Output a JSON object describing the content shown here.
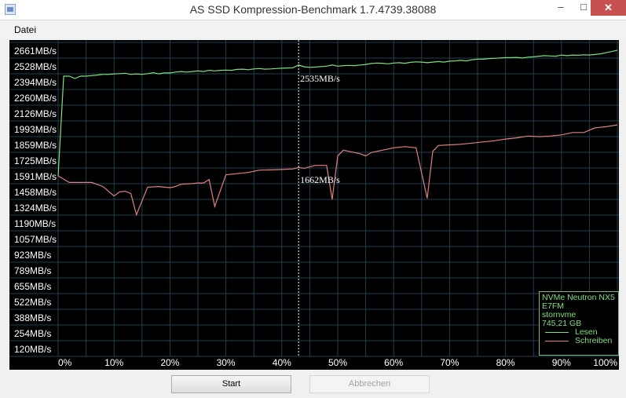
{
  "window": {
    "title": "AS SSD Kompression-Benchmark 1.7.4739.38088",
    "minimize_glyph": "–",
    "maximize_glyph": "□",
    "close_glyph": "✕"
  },
  "menu": {
    "items": [
      {
        "label": "Datei"
      }
    ]
  },
  "chart_data": {
    "type": "line",
    "y_ticks": [
      "2661MB/s",
      "2528MB/s",
      "2394MB/s",
      "2260MB/s",
      "2126MB/s",
      "1993MB/s",
      "1859MB/s",
      "1725MB/s",
      "1591MB/s",
      "1458MB/s",
      "1324MB/s",
      "1190MB/s",
      "1057MB/s",
      "923MB/s",
      "789MB/s",
      "655MB/s",
      "522MB/s",
      "388MB/s",
      "254MB/s",
      "120MB/s"
    ],
    "x_ticks": [
      "0%",
      "10%",
      "20%",
      "30%",
      "40%",
      "50%",
      "60%",
      "70%",
      "80%",
      "90%",
      "100%"
    ],
    "x_unit": "% compressibility",
    "y_unit": "MB/s",
    "ylim": [
      120,
      2661
    ],
    "xlim": [
      0,
      100
    ],
    "grid": true,
    "cursor": {
      "x": 43,
      "read_label": "2535MB/s",
      "write_label": "1662MB/s"
    },
    "series": [
      {
        "name": "Lesen",
        "color": "#7fe07f",
        "x": [
          0,
          1,
          2,
          3,
          4,
          5,
          6,
          7,
          8,
          9,
          10,
          11,
          12,
          13,
          14,
          15,
          16,
          17,
          18,
          19,
          20,
          21,
          22,
          23,
          24,
          25,
          26,
          27,
          28,
          29,
          30,
          31,
          32,
          33,
          34,
          35,
          36,
          37,
          38,
          39,
          40,
          41,
          42,
          43,
          44,
          45,
          46,
          47,
          48,
          49,
          50,
          51,
          52,
          53,
          54,
          55,
          56,
          57,
          58,
          59,
          60,
          61,
          62,
          63,
          64,
          65,
          66,
          67,
          68,
          69,
          70,
          71,
          72,
          73,
          74,
          75,
          76,
          77,
          78,
          79,
          80,
          81,
          82,
          83,
          84,
          85,
          86,
          87,
          88,
          89,
          90,
          91,
          92,
          93,
          94,
          95,
          96,
          97,
          98,
          99,
          100
        ],
        "y": [
          1591,
          2440,
          2440,
          2420,
          2440,
          2440,
          2445,
          2450,
          2455,
          2455,
          2460,
          2462,
          2465,
          2455,
          2460,
          2455,
          2462,
          2470,
          2460,
          2468,
          2468,
          2475,
          2480,
          2475,
          2480,
          2485,
          2480,
          2490,
          2485,
          2490,
          2492,
          2490,
          2498,
          2500,
          2495,
          2502,
          2505,
          2500,
          2502,
          2505,
          2508,
          2510,
          2512,
          2535,
          2520,
          2515,
          2518,
          2522,
          2525,
          2535,
          2525,
          2530,
          2532,
          2530,
          2535,
          2540,
          2548,
          2552,
          2550,
          2545,
          2552,
          2555,
          2550,
          2558,
          2562,
          2560,
          2555,
          2560,
          2565,
          2560,
          2568,
          2570,
          2575,
          2570,
          2580,
          2585,
          2585,
          2590,
          2592,
          2595,
          2598,
          2598,
          2600,
          2595,
          2602,
          2605,
          2610,
          2615,
          2612,
          2610,
          2620,
          2615,
          2620,
          2618,
          2622,
          2620,
          2625,
          2630,
          2640,
          2650,
          2661
        ]
      },
      {
        "name": "Schreiben",
        "color": "#e08080",
        "x": [
          0,
          2,
          4,
          5,
          6,
          8,
          10,
          11,
          12,
          13,
          14,
          16,
          18,
          20,
          21,
          22,
          24,
          25,
          26,
          27,
          28,
          30,
          32,
          34,
          36,
          38,
          40,
          42,
          43,
          44,
          46,
          47,
          48,
          49,
          50,
          51,
          52,
          53,
          54,
          55,
          56,
          58,
          60,
          62,
          64,
          66,
          67,
          68,
          70,
          72,
          74,
          76,
          78,
          80,
          82,
          84,
          86,
          88,
          90,
          92,
          94,
          96,
          98,
          100
        ],
        "y": [
          1591,
          1535,
          1535,
          1535,
          1535,
          1500,
          1420,
          1455,
          1460,
          1440,
          1260,
          1495,
          1500,
          1490,
          1500,
          1520,
          1525,
          1530,
          1530,
          1560,
          1330,
          1600,
          1610,
          1620,
          1640,
          1642,
          1645,
          1650,
          1662,
          1655,
          1680,
          1680,
          1680,
          1390,
          1760,
          1810,
          1800,
          1790,
          1780,
          1760,
          1790,
          1810,
          1830,
          1840,
          1830,
          1400,
          1800,
          1850,
          1855,
          1860,
          1870,
          1880,
          1890,
          1905,
          1915,
          1930,
          1925,
          1930,
          1940,
          1960,
          1960,
          2000,
          2010,
          2025
        ]
      }
    ]
  },
  "device": {
    "model": "NVMe Neutron NX5",
    "firmware": "E7FM",
    "driver": "stornvme",
    "capacity": "745,21 GB"
  },
  "legend": {
    "read_label": "Lesen",
    "write_label": "Schreiben"
  },
  "buttons": {
    "start": "Start",
    "abort": "Abbrechen"
  }
}
